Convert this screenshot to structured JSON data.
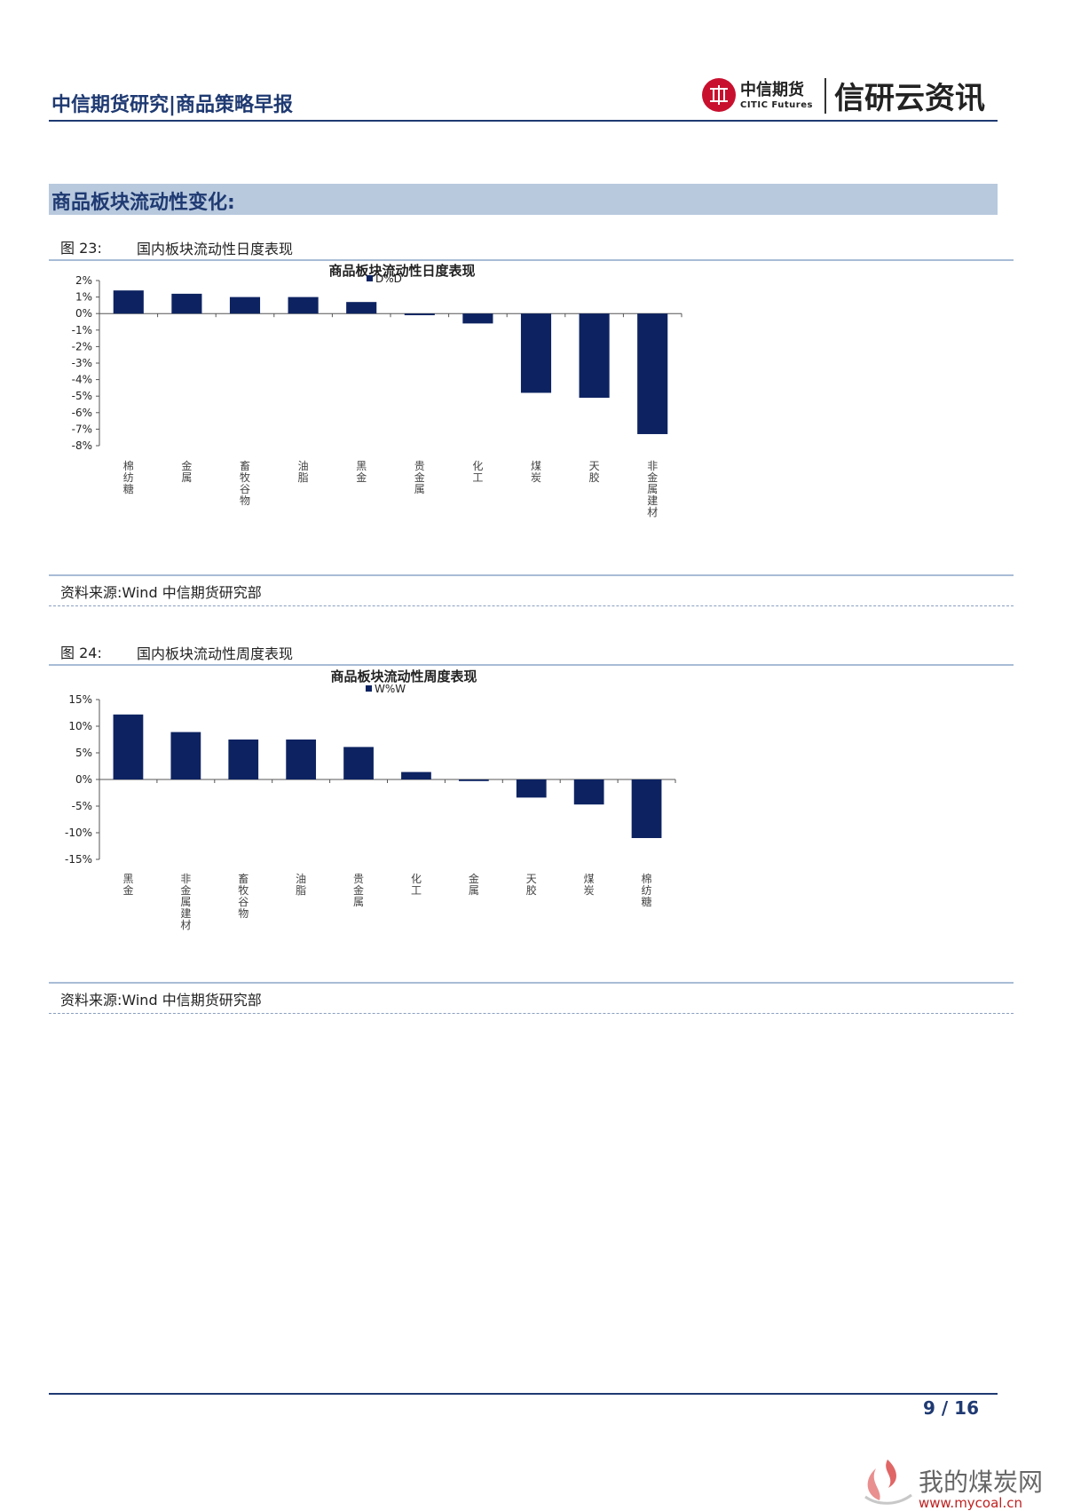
{
  "header": {
    "title": "中信期货研究|商品策略早报",
    "logo_cn": "中信期货",
    "logo_en": "CITIC Futures",
    "logo_right": "信研云资讯"
  },
  "section": {
    "title": "商品板块流动性变化:"
  },
  "figures": [
    {
      "label": "图 23:",
      "title": "国内板块流动性日度表现",
      "source": "资料来源:Wind 中信期货研究部"
    },
    {
      "label": "图 24:",
      "title": "国内板块流动性周度表现",
      "source": "资料来源:Wind 中信期货研究部"
    }
  ],
  "chart_data": [
    {
      "type": "bar",
      "title": "商品板块流动性日度表现",
      "legend": "D%D",
      "legend_position": "top",
      "categories": [
        "棉纺糖",
        "金属",
        "畜牧谷物",
        "油脂",
        "黑金",
        "贵金属",
        "化工",
        "煤炭",
        "天胶",
        "非金属建材"
      ],
      "values": [
        1.4,
        1.2,
        1.0,
        1.0,
        0.7,
        -0.1,
        -0.6,
        -4.8,
        -5.1,
        -7.3
      ],
      "yticks": [
        "2%",
        "1%",
        "0%",
        "-1%",
        "-2%",
        "-3%",
        "-4%",
        "-5%",
        "-6%",
        "-7%",
        "-8%"
      ],
      "ylim": [
        -8,
        2
      ],
      "color": "#0d2361",
      "grid": false
    },
    {
      "type": "bar",
      "title": "商品板块流动性周度表现",
      "legend": "W%W",
      "legend_position": "top",
      "categories": [
        "黑金",
        "非金属建材",
        "畜牧谷物",
        "油脂",
        "贵金属",
        "化工",
        "金属",
        "天胶",
        "煤炭",
        "棉纺糖"
      ],
      "values": [
        12.2,
        8.9,
        7.5,
        7.5,
        6.1,
        1.4,
        -0.3,
        -3.4,
        -4.7,
        -11.0
      ],
      "yticks": [
        "15%",
        "10%",
        "5%",
        "0%",
        "-5%",
        "-10%",
        "-15%"
      ],
      "ylim": [
        -15,
        15
      ],
      "color": "#0d2361",
      "grid": false
    }
  ],
  "footer": {
    "page": "9 / 16"
  },
  "watermark": {
    "cn": "我的煤炭网",
    "url": "www.mycoal.cn"
  }
}
